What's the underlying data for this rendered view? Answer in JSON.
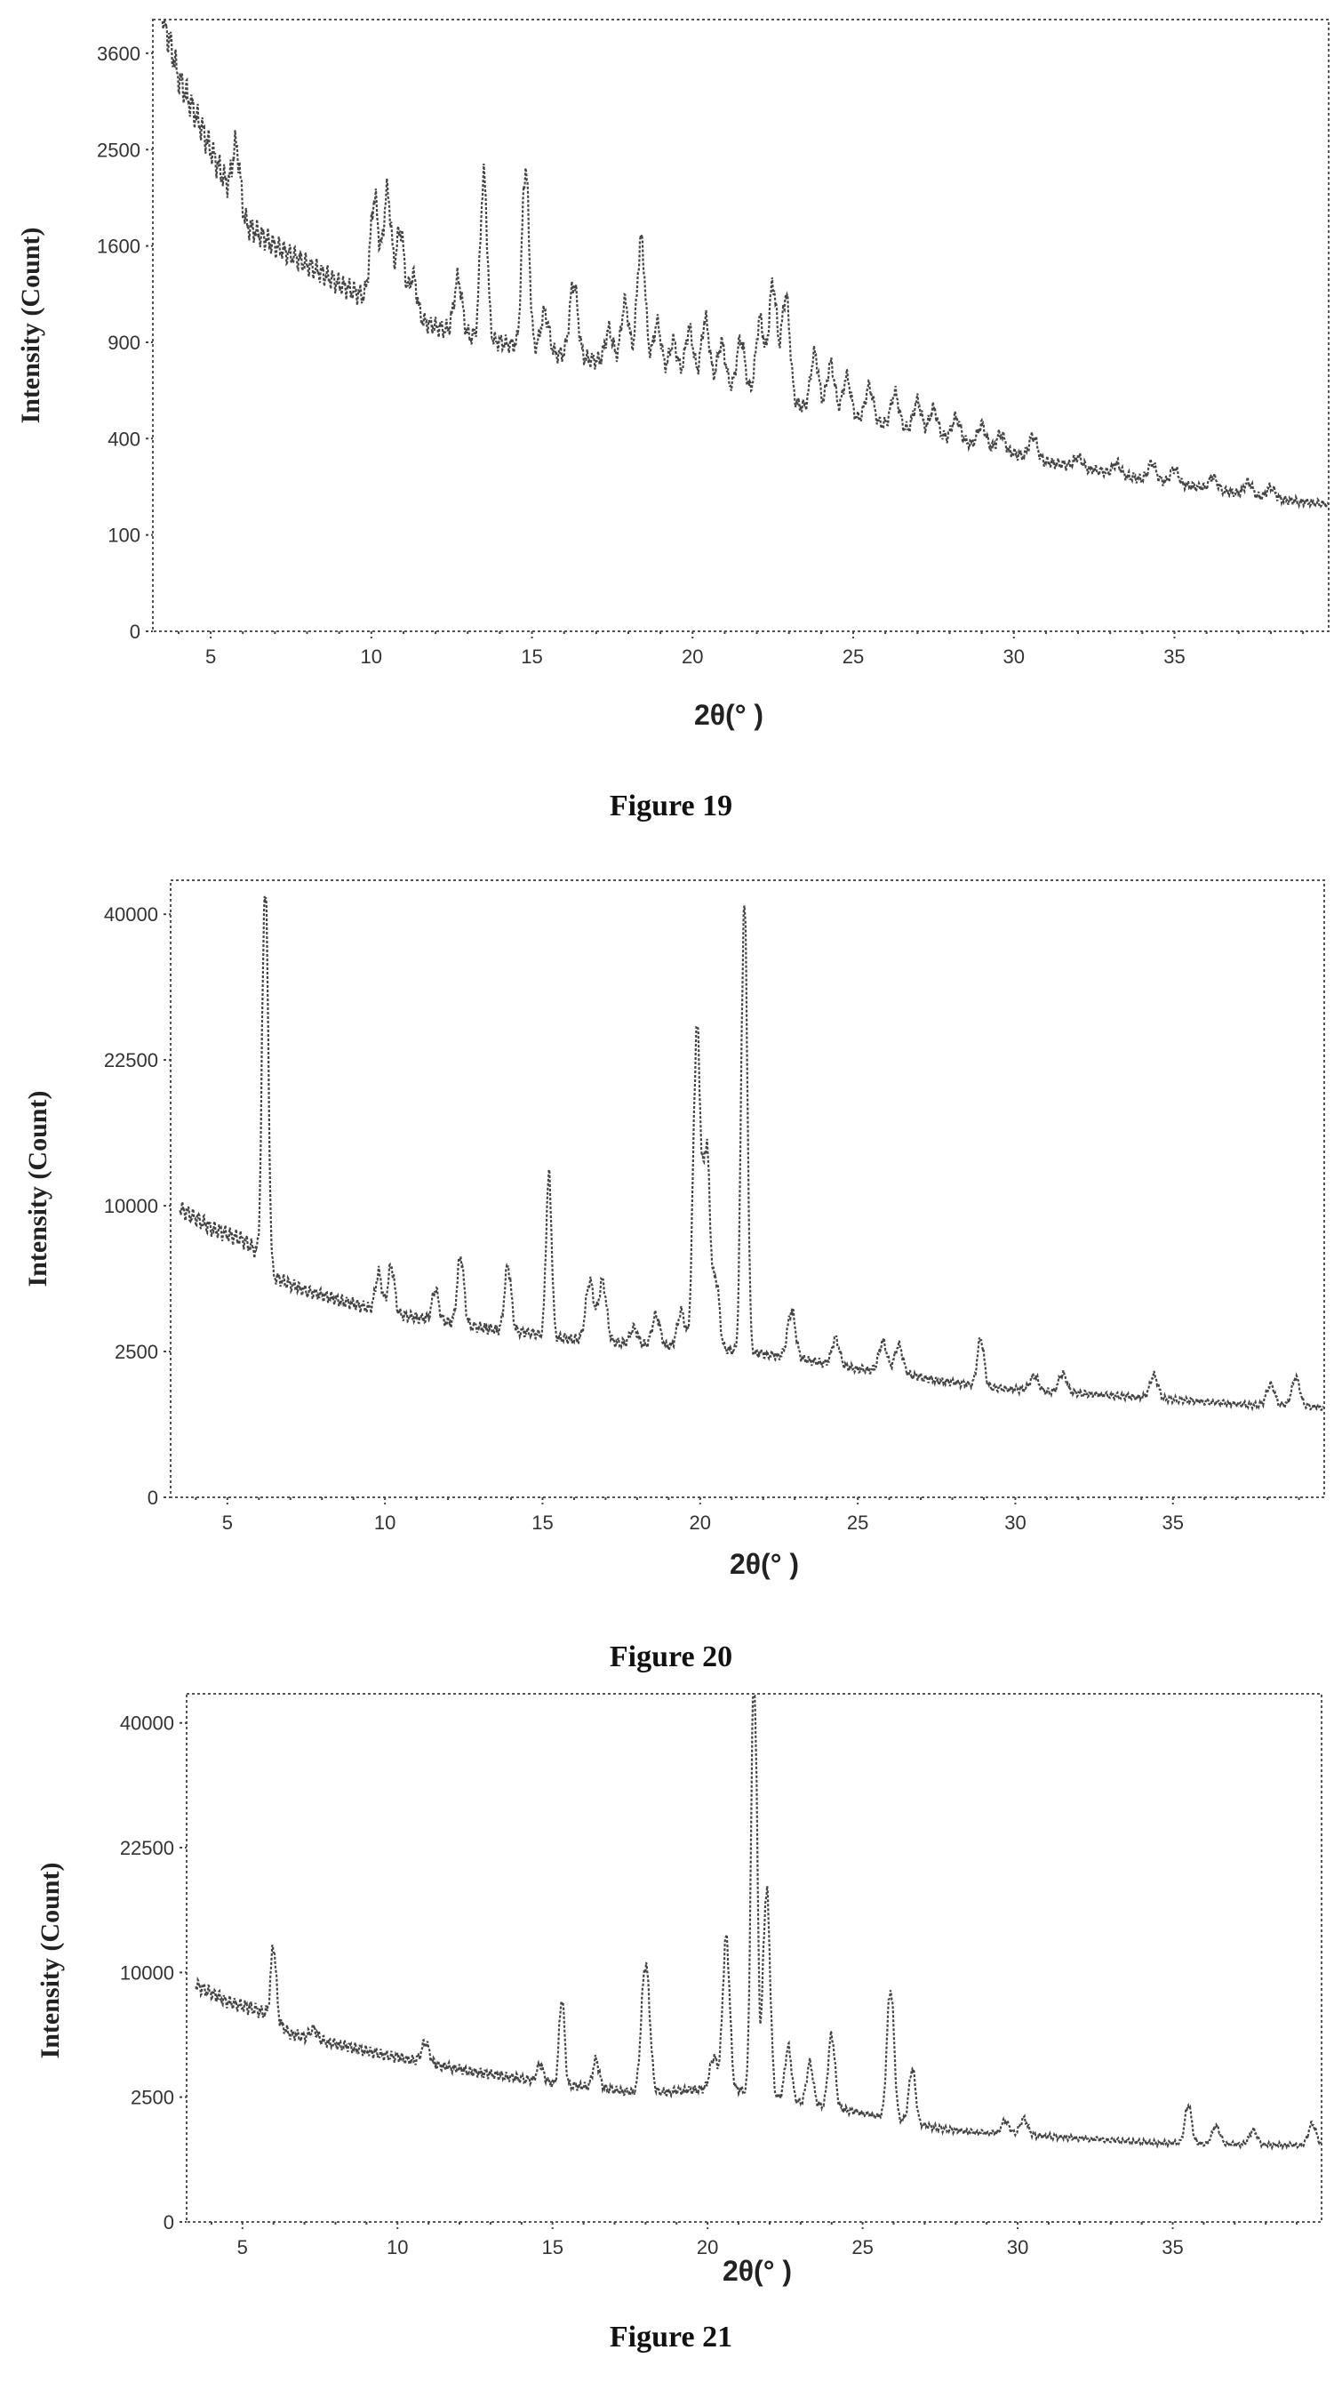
{
  "chart_data": [
    {
      "type": "line",
      "caption": "Figure 19",
      "xlabel": "2θ(° )",
      "ylabel": "Intensity (Count)",
      "xlim": [
        3.2,
        39.8
      ],
      "x_ticks": [
        5,
        10,
        15,
        20,
        25,
        30,
        35
      ],
      "x_tick_labels": [
        "5",
        "10",
        "15",
        "20",
        "25",
        "30",
        "35"
      ],
      "y_ticks": [
        0,
        100,
        400,
        900,
        1600,
        2500,
        3600
      ],
      "y_tick_labels": [
        "0",
        "100",
        "400",
        "900",
        "1600",
        "2500",
        "3600"
      ],
      "y_scale": "sqrt",
      "grid": false,
      "baseline": [
        [
          3.5,
          4100
        ],
        [
          4,
          3300
        ],
        [
          5,
          2500
        ],
        [
          6,
          1800
        ],
        [
          7,
          1600
        ],
        [
          8,
          1450
        ],
        [
          9,
          1300
        ],
        [
          10,
          1180
        ],
        [
          11,
          1080
        ],
        [
          12,
          1000
        ],
        [
          13,
          940
        ],
        [
          14,
          900
        ],
        [
          15,
          860
        ],
        [
          16,
          820
        ],
        [
          17,
          790
        ],
        [
          18,
          760
        ],
        [
          19,
          720
        ],
        [
          20,
          680
        ],
        [
          21,
          640
        ],
        [
          22,
          600
        ],
        [
          23,
          560
        ],
        [
          24,
          520
        ],
        [
          25,
          490
        ],
        [
          26,
          460
        ],
        [
          27,
          430
        ],
        [
          28,
          400
        ],
        [
          29,
          370
        ],
        [
          30,
          340
        ],
        [
          31,
          310
        ],
        [
          32,
          290
        ],
        [
          33,
          270
        ],
        [
          34,
          250
        ],
        [
          35,
          235
        ],
        [
          36,
          220
        ],
        [
          37,
          205
        ],
        [
          38,
          190
        ],
        [
          39,
          180
        ],
        [
          39.8,
          175
        ]
      ],
      "peaks": [
        [
          5.8,
          600,
          0.12
        ],
        [
          10.1,
          850,
          0.12
        ],
        [
          10.5,
          950,
          0.12
        ],
        [
          10.9,
          650,
          0.12
        ],
        [
          11.3,
          300,
          0.12
        ],
        [
          12.7,
          380,
          0.12
        ],
        [
          13.5,
          1300,
          0.1
        ],
        [
          14.8,
          1450,
          0.1
        ],
        [
          15.4,
          250,
          0.12
        ],
        [
          16.3,
          500,
          0.12
        ],
        [
          17.4,
          200,
          0.12
        ],
        [
          17.9,
          400,
          0.12
        ],
        [
          18.4,
          900,
          0.12
        ],
        [
          18.9,
          300,
          0.12
        ],
        [
          19.4,
          200,
          0.12
        ],
        [
          19.9,
          300,
          0.12
        ],
        [
          20.4,
          380,
          0.12
        ],
        [
          20.9,
          250,
          0.12
        ],
        [
          21.5,
          300,
          0.12
        ],
        [
          22.1,
          450,
          0.12
        ],
        [
          22.5,
          720,
          0.12
        ],
        [
          22.9,
          650,
          0.12
        ],
        [
          23.8,
          300,
          0.12
        ],
        [
          24.3,
          260,
          0.12
        ],
        [
          24.8,
          200,
          0.12
        ],
        [
          25.5,
          170,
          0.12
        ],
        [
          26.3,
          160,
          0.12
        ],
        [
          27.0,
          140,
          0.12
        ],
        [
          27.5,
          120,
          0.12
        ],
        [
          28.2,
          100,
          0.12
        ],
        [
          29.0,
          90,
          0.12
        ],
        [
          29.6,
          70,
          0.12
        ],
        [
          30.6,
          90,
          0.12
        ],
        [
          32.0,
          40,
          0.12
        ],
        [
          33.2,
          40,
          0.12
        ],
        [
          34.3,
          60,
          0.12
        ],
        [
          35.0,
          50,
          0.12
        ],
        [
          36.2,
          40,
          0.12
        ],
        [
          37.3,
          40,
          0.12
        ],
        [
          38.0,
          35,
          0.12
        ]
      ]
    },
    {
      "type": "line",
      "caption": "Figure 20",
      "xlabel": "2θ(° )",
      "ylabel": "Intensity (Count)",
      "xlim": [
        3.2,
        39.8
      ],
      "x_ticks": [
        5,
        10,
        15,
        20,
        25,
        30,
        35
      ],
      "x_tick_labels": [
        "5",
        "10",
        "15",
        "20",
        "25",
        "30",
        "35"
      ],
      "y_ticks": [
        0,
        2500,
        10000,
        22500,
        40000
      ],
      "y_tick_labels": [
        "0",
        "2500",
        "10000",
        "22500",
        "40000"
      ],
      "y_scale": "sqrt",
      "grid": false,
      "baseline": [
        [
          3.5,
          9800
        ],
        [
          4.5,
          8500
        ],
        [
          5.5,
          7800
        ],
        [
          6.0,
          7000
        ],
        [
          6.5,
          5700
        ],
        [
          7.5,
          5000
        ],
        [
          8.5,
          4600
        ],
        [
          9.5,
          4200
        ],
        [
          10.5,
          3900
        ],
        [
          11.5,
          3700
        ],
        [
          12.5,
          3500
        ],
        [
          13.5,
          3300
        ],
        [
          14.5,
          3200
        ],
        [
          15.5,
          3000
        ],
        [
          16.5,
          2900
        ],
        [
          17.5,
          2800
        ],
        [
          18.5,
          2700
        ],
        [
          19.5,
          2650
        ],
        [
          20.5,
          2600
        ],
        [
          21.5,
          2500
        ],
        [
          22.5,
          2350
        ],
        [
          23.5,
          2200
        ],
        [
          24.5,
          2000
        ],
        [
          25.5,
          1900
        ],
        [
          26.5,
          1800
        ],
        [
          27.5,
          1600
        ],
        [
          28.5,
          1500
        ],
        [
          29.5,
          1400
        ],
        [
          30.5,
          1350
        ],
        [
          31.5,
          1300
        ],
        [
          32.5,
          1250
        ],
        [
          33.5,
          1200
        ],
        [
          34.5,
          1150
        ],
        [
          35.5,
          1100
        ],
        [
          36.5,
          1050
        ],
        [
          37.5,
          1000
        ],
        [
          38.5,
          1000
        ],
        [
          39.8,
          950
        ]
      ],
      "peaks": [
        [
          6.2,
          38000,
          0.08
        ],
        [
          9.8,
          1800,
          0.1
        ],
        [
          10.2,
          2300,
          0.1
        ],
        [
          11.6,
          1400,
          0.1
        ],
        [
          12.4,
          3300,
          0.1
        ],
        [
          13.9,
          3000,
          0.1
        ],
        [
          15.2,
          9000,
          0.08
        ],
        [
          16.5,
          2600,
          0.12
        ],
        [
          16.9,
          2600,
          0.12
        ],
        [
          17.9,
          600,
          0.12
        ],
        [
          18.6,
          1200,
          0.12
        ],
        [
          19.4,
          1400,
          0.12
        ],
        [
          19.9,
          23000,
          0.1
        ],
        [
          20.2,
          12000,
          0.1
        ],
        [
          20.5,
          3000,
          0.1
        ],
        [
          21.4,
          38500,
          0.08
        ],
        [
          22.9,
          1800,
          0.12
        ],
        [
          24.3,
          900,
          0.12
        ],
        [
          25.8,
          1000,
          0.12
        ],
        [
          26.3,
          900,
          0.12
        ],
        [
          28.9,
          1500,
          0.1
        ],
        [
          30.6,
          400,
          0.12
        ],
        [
          31.5,
          500,
          0.12
        ],
        [
          34.4,
          600,
          0.12
        ],
        [
          38.1,
          500,
          0.12
        ],
        [
          38.9,
          700,
          0.12
        ]
      ]
    },
    {
      "type": "line",
      "caption": "Figure 21",
      "xlabel": "2θ(° )",
      "ylabel": "Intensity (Count)",
      "xlim": [
        3.2,
        39.8
      ],
      "x_ticks": [
        5,
        10,
        15,
        20,
        25,
        30,
        35
      ],
      "x_tick_labels": [
        "5",
        "10",
        "15",
        "20",
        "25",
        "30",
        "35"
      ],
      "y_ticks": [
        0,
        2500,
        10000,
        22500,
        40000
      ],
      "y_tick_labels": [
        "0",
        "2500",
        "10000",
        "22500",
        "40000"
      ],
      "y_scale": "sqrt",
      "grid": false,
      "baseline": [
        [
          3.5,
          9000
        ],
        [
          4.5,
          7800
        ],
        [
          5.5,
          7200
        ],
        [
          6.0,
          6800
        ],
        [
          6.5,
          5700
        ],
        [
          7.5,
          5300
        ],
        [
          8.5,
          4900
        ],
        [
          9.5,
          4500
        ],
        [
          10.5,
          4200
        ],
        [
          11.5,
          3900
        ],
        [
          12.5,
          3600
        ],
        [
          13.5,
          3400
        ],
        [
          14.5,
          3200
        ],
        [
          15.5,
          3000
        ],
        [
          16.5,
          2900
        ],
        [
          17.5,
          2700
        ],
        [
          18.5,
          2700
        ],
        [
          19.5,
          2800
        ],
        [
          20.5,
          2900
        ],
        [
          21.5,
          2700
        ],
        [
          22.5,
          2400
        ],
        [
          23.5,
          2200
        ],
        [
          24.5,
          2000
        ],
        [
          25.5,
          1800
        ],
        [
          26.5,
          1600
        ],
        [
          27.5,
          1400
        ],
        [
          28.5,
          1300
        ],
        [
          29.5,
          1250
        ],
        [
          30.5,
          1200
        ],
        [
          31.5,
          1150
        ],
        [
          32.5,
          1100
        ],
        [
          33.5,
          1050
        ],
        [
          34.5,
          1000
        ],
        [
          35.5,
          1000
        ],
        [
          36.5,
          980
        ],
        [
          37.5,
          960
        ],
        [
          38.5,
          950
        ],
        [
          39.8,
          950
        ]
      ],
      "peaks": [
        [
          6.0,
          5500,
          0.08
        ],
        [
          7.3,
          600,
          0.12
        ],
        [
          10.9,
          1100,
          0.12
        ],
        [
          14.6,
          800,
          0.1
        ],
        [
          15.3,
          5000,
          0.08
        ],
        [
          16.4,
          1300,
          0.1
        ],
        [
          18.0,
          8000,
          0.12
        ],
        [
          20.2,
          1500,
          0.12
        ],
        [
          20.6,
          10000,
          0.1
        ],
        [
          21.5,
          45000,
          0.08
        ],
        [
          21.9,
          15000,
          0.1
        ],
        [
          22.6,
          2500,
          0.1
        ],
        [
          23.3,
          1800,
          0.1
        ],
        [
          24.0,
          3500,
          0.1
        ],
        [
          25.9,
          7000,
          0.1
        ],
        [
          26.6,
          2200,
          0.1
        ],
        [
          29.6,
          400,
          0.12
        ],
        [
          30.2,
          500,
          0.12
        ],
        [
          35.5,
          1200,
          0.1
        ],
        [
          36.4,
          500,
          0.12
        ],
        [
          37.6,
          400,
          0.12
        ],
        [
          39.5,
          600,
          0.12
        ]
      ]
    }
  ]
}
